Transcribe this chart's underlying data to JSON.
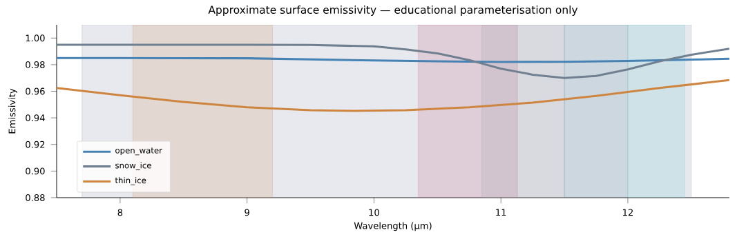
{
  "chart_data": {
    "type": "line",
    "title": "Approximate surface emissivity — educational parameterisation only",
    "xlabel": "Wavelength (µm)",
    "ylabel": "Emissivity",
    "xlim": [
      7.5,
      12.8
    ],
    "xticks": [
      8,
      9,
      10,
      11,
      12
    ],
    "ylim": [
      0.88,
      1.01
    ],
    "yticks": [
      {
        "value": 0.88,
        "label": "0.88"
      },
      {
        "value": 0.9,
        "label": "0.90"
      },
      {
        "value": 0.92,
        "label": "0.92"
      },
      {
        "value": 0.94,
        "label": "0.94"
      },
      {
        "value": 0.96,
        "label": "0.96"
      },
      {
        "value": 0.98,
        "label": "0.98"
      },
      {
        "value": 1.0,
        "label": "1.00"
      }
    ],
    "grid": false,
    "legend": "bottom left",
    "bands": [
      {
        "axis": "x",
        "from": 7.7,
        "to": 12.5,
        "color": "#8a93aa"
      },
      {
        "axis": "x",
        "from": 8.1,
        "to": 9.2,
        "color": "#d09060"
      },
      {
        "axis": "x",
        "from": 10.35,
        "to": 11.13,
        "color": "#c06080"
      },
      {
        "axis": "x",
        "from": 10.85,
        "to": 11.5,
        "color": "#a0a0a8"
      },
      {
        "axis": "x",
        "from": 11.5,
        "to": 12.0,
        "color": "#6090a8"
      },
      {
        "axis": "x",
        "from": 12.0,
        "to": 12.45,
        "color": "#70c8d0"
      }
    ],
    "series": [
      {
        "name": "open_water",
        "color": "#4682b4",
        "x": [
          7.5,
          8,
          9,
          10,
          10.5,
          11,
          11.5,
          12,
          12.5,
          12.8
        ],
        "values": [
          0.985,
          0.985,
          0.9848,
          0.9832,
          0.9825,
          0.982,
          0.9822,
          0.9828,
          0.9838,
          0.9845
        ]
      },
      {
        "name": "snow_ice",
        "color": "#708090",
        "x": [
          7.5,
          8,
          9,
          9.5,
          10,
          10.25,
          10.5,
          10.75,
          11,
          11.25,
          11.5,
          11.75,
          12,
          12.25,
          12.5,
          12.8
        ],
        "values": [
          0.995,
          0.995,
          0.995,
          0.9948,
          0.9938,
          0.9915,
          0.9885,
          0.9835,
          0.977,
          0.9725,
          0.97,
          0.9715,
          0.9765,
          0.9825,
          0.9875,
          0.992
        ]
      },
      {
        "name": "thin_ice",
        "color": "#cd853f",
        "x": [
          7.5,
          8,
          8.5,
          9,
          9.5,
          9.85,
          10.25,
          10.75,
          11.25,
          11.75,
          12.25,
          12.8
        ],
        "values": [
          0.9625,
          0.957,
          0.952,
          0.948,
          0.9458,
          0.9452,
          0.9458,
          0.948,
          0.9515,
          0.9565,
          0.9625,
          0.9684
        ]
      }
    ]
  }
}
